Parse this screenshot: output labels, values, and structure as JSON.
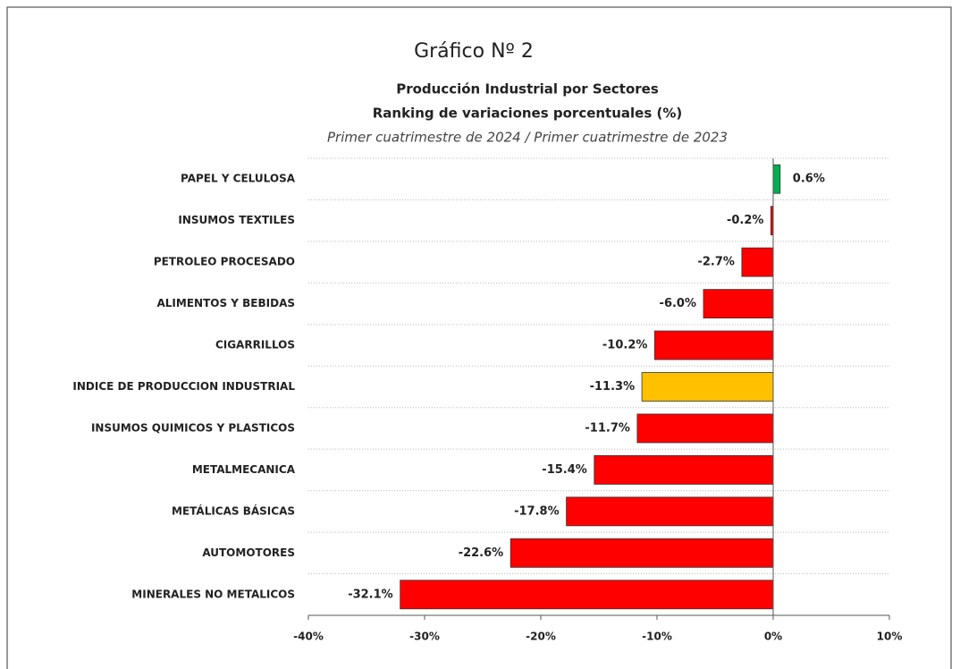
{
  "chart_data": {
    "type": "hbar",
    "title": "Gráfico Nº 2",
    "subtitle": [
      "Producción Industrial por Sectores",
      "Ranking de variaciones porcentuales (%)"
    ],
    "caption": "Primer cuatrimestre de 2024 / Primer cuatrimestre de 2023",
    "categories": [
      "PAPEL Y CELULOSA",
      "INSUMOS TEXTILES",
      "PETROLEO PROCESADO",
      "ALIMENTOS Y BEBIDAS",
      "CIGARRILLOS",
      "INDICE DE PRODUCCION INDUSTRIAL",
      "INSUMOS QUIMICOS Y PLASTICOS",
      "METALMECANICA",
      "METÁLICAS BÁSICAS",
      "AUTOMOTORES",
      "MINERALES NO METALICOS"
    ],
    "values": [
      0.6,
      -0.2,
      -2.7,
      -6.0,
      -10.2,
      -11.3,
      -11.7,
      -15.4,
      -17.8,
      -22.6,
      -32.1
    ],
    "value_labels": [
      "0.6%",
      "-0.2%",
      "-2.7%",
      "-6.0%",
      "-10.2%",
      "-11.3%",
      "-11.7%",
      "-15.4%",
      "-17.8%",
      "-22.6%",
      "-32.1%"
    ],
    "colors": [
      "#00b050",
      "#ff0000",
      "#ff0000",
      "#ff0000",
      "#ff0000",
      "#ffc000",
      "#ff0000",
      "#ff0000",
      "#ff0000",
      "#ff0000",
      "#ff0000"
    ],
    "xlim": [
      -40,
      10
    ],
    "xticks": [
      {
        "value": -40,
        "label": "-40%"
      },
      {
        "value": -30,
        "label": "-30%"
      },
      {
        "value": -20,
        "label": "-20%"
      },
      {
        "value": -10,
        "label": "-10%"
      },
      {
        "value": 0,
        "label": "0%"
      },
      {
        "value": 10,
        "label": "10%"
      }
    ]
  }
}
